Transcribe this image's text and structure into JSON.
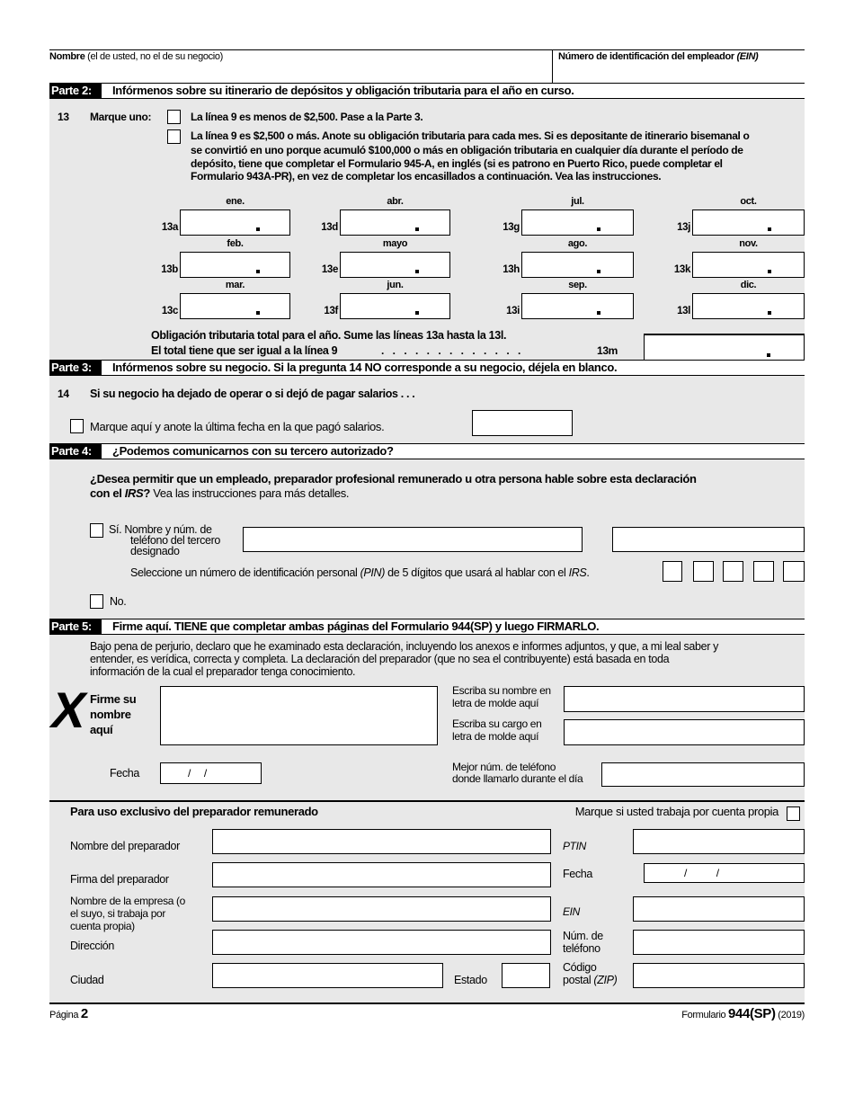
{
  "header": {
    "name_bold": "Nombre",
    "name_rest": " (el de usted, no el de su negocio)",
    "ein_label": "Número de identificación del empleador ",
    "ein_abbr": "(EIN)"
  },
  "part2": {
    "tag": "Parte 2:",
    "title": "Infórmenos sobre su itinerario de depósitos y obligación tributaria para el año en curso.",
    "line": "13",
    "marque": "Marque uno:",
    "option1": "La línea 9 es menos de $2,500. Pase a la Parte 3.",
    "option2_lines": [
      "La línea 9 es $2,500 o más. Anote su obligación tributaria para cada mes. Si es depositante de itinerario bisemanal o",
      "se convirtió en uno porque acumuló $100,000 o más en obligación tributaria en cualquier día durante el período de",
      "depósito, tiene que completar el Formulario 945-A, en inglés (si es patrono en Puerto Rico, puede completar el",
      "Formulario 943A-PR), en vez de completar los encasillados a continuación. Vea las instrucciones."
    ],
    "months": [
      {
        "label": "ene.",
        "line": "13a"
      },
      {
        "label": "feb.",
        "line": "13b"
      },
      {
        "label": "mar.",
        "line": "13c"
      },
      {
        "label": "abr.",
        "line": "13d"
      },
      {
        "label": "mayo",
        "line": "13e"
      },
      {
        "label": "jun.",
        "line": "13f"
      },
      {
        "label": "jul.",
        "line": "13g"
      },
      {
        "label": "ago.",
        "line": "13h"
      },
      {
        "label": "sep.",
        "line": "13i"
      },
      {
        "label": "oct.",
        "line": "13j"
      },
      {
        "label": "nov.",
        "line": "13k"
      },
      {
        "label": "dic.",
        "line": "13l"
      }
    ],
    "total_line1": "Obligación tributaria total para el año. Sume las líneas 13a hasta la 13l.",
    "total_line2": "El total tiene que ser igual a la línea 9",
    "leader": ". . . . . . . . . . . . .",
    "total_num": "13m"
  },
  "part3": {
    "tag": "Parte 3:",
    "title": "Infórmenos sobre su negocio. Si la pregunta 14 NO corresponde a su negocio, déjela en blanco.",
    "line": "14",
    "question": "Si su negocio ha dejado de operar o si dejó de pagar salarios . . .",
    "check_label": "Marque aquí y anote la última fecha en la que pagó salarios."
  },
  "part4": {
    "tag": "Parte 4:",
    "title": "¿Podemos comunicarnos con su tercero autorizado?",
    "q1_bold": "¿Desea permitir que un empleado, preparador profesional remunerado u otra persona hable sobre esta declaración",
    "q2_bold": "con el ",
    "q2_irs": "IRS",
    "q2_q": "?",
    "q2_rest": " Vea las instrucciones para más detalles.",
    "yes_lines": [
      "Sí.  Nombre y núm. de",
      "teléfono del tercero",
      "designado"
    ],
    "pin_a": "Seleccione un número de identificación personal ",
    "pin_b": "(PIN)",
    "pin_c": " de 5 dígitos que usará al hablar con el ",
    "pin_d": "IRS",
    "pin_e": ".",
    "no": "No."
  },
  "part5": {
    "tag": "Parte 5:",
    "title": "Firme aquí. TIENE que completar ambas páginas del Formulario 944(SP) y luego FIRMARLO.",
    "perjury_lines": [
      "Bajo pena de perjurio, declaro que he examinado esta declaración, incluyendo los anexos e informes adjuntos, y que, a mi leal saber y",
      "entender, es verídica, correcta y completa. La declaración del preparador (que no sea el contribuyente) está basada en toda",
      "información de la cual el preparador tenga conocimiento."
    ],
    "x_mark": "X",
    "sign_lines": [
      "Firme su",
      "nombre",
      "aquí"
    ],
    "print_name": [
      "Escriba su nombre en",
      "letra de molde aquí"
    ],
    "print_title": [
      "Escriba su cargo en",
      "letra de molde aquí"
    ],
    "date_label": "Fecha",
    "date_value": "/     /",
    "phone": [
      "Mejor núm. de teléfono",
      "donde llamarlo durante el día"
    ]
  },
  "preparer": {
    "title": "Para uso exclusivo del preparador remunerado",
    "self_employed": "Marque si usted trabaja por cuenta propia",
    "name": "Nombre del preparador",
    "ptin": "PTIN",
    "signature": "Firma del preparador",
    "date": "Fecha",
    "date_value": "/           /",
    "firm": [
      "Nombre de la empresa (o",
      "el suyo, si trabaja por",
      "cuenta propia)"
    ],
    "ein": "EIN",
    "address": "Dirección",
    "phone": [
      "Núm. de",
      "teléfono"
    ],
    "city": "Ciudad",
    "state": "Estado",
    "zip_a": "Código",
    "zip_b": "postal ",
    "zip_c": "(ZIP)"
  },
  "footer": {
    "page_label": "Página ",
    "page_num": "2",
    "form_label": "Formulario ",
    "form_num": "944(SP)",
    "year": " (2019)"
  }
}
